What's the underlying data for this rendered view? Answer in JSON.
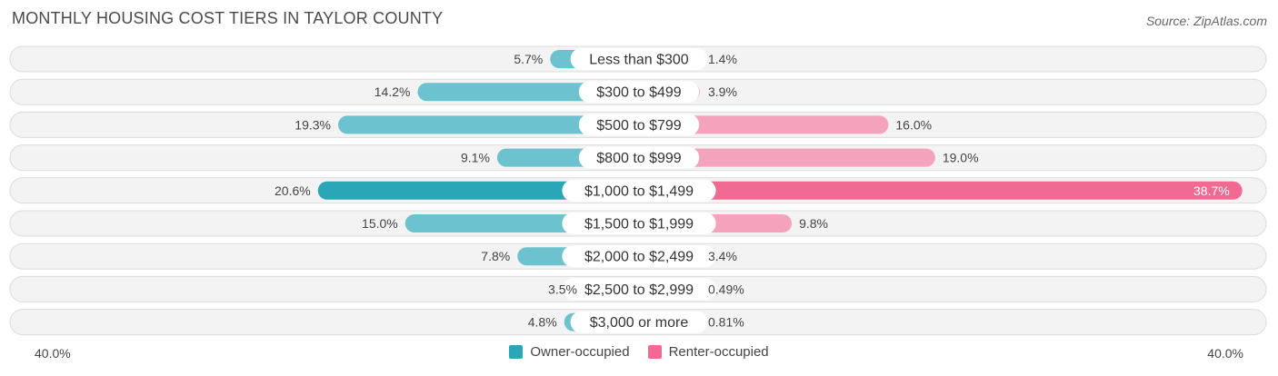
{
  "title": "MONTHLY HOUSING COST TIERS IN TAYLOR COUNTY",
  "source": "Source: ZipAtlas.com",
  "axis": {
    "left_label": "40.0%",
    "right_label": "40.0%"
  },
  "legend": {
    "owner_label": "Owner-occupied",
    "renter_label": "Renter-occupied"
  },
  "colors": {
    "owner": "#6cc2cf",
    "owner_strong": "#2aa6b6",
    "renter": "#f5a3bd",
    "renter_strong": "#f06a93",
    "track": "#efefef"
  },
  "chart_data": {
    "type": "bar",
    "orientation": "horizontal-diverging",
    "categories": [
      "Less than $300",
      "$300 to $499",
      "$500 to $799",
      "$800 to $999",
      "$1,000 to $1,499",
      "$1,500 to $1,999",
      "$2,000 to $2,499",
      "$2,500 to $2,999",
      "$3,000 or more"
    ],
    "series": [
      {
        "name": "Owner-occupied",
        "values": [
          5.7,
          14.2,
          19.3,
          9.1,
          20.6,
          15.0,
          7.8,
          3.5,
          4.8
        ],
        "labels": [
          "5.7%",
          "14.2%",
          "19.3%",
          "9.1%",
          "20.6%",
          "15.0%",
          "7.8%",
          "3.5%",
          "4.8%"
        ]
      },
      {
        "name": "Renter-occupied",
        "values": [
          1.4,
          3.9,
          16.0,
          19.0,
          38.7,
          9.8,
          3.4,
          0.49,
          0.81
        ],
        "labels": [
          "1.4%",
          "3.9%",
          "16.0%",
          "19.0%",
          "38.7%",
          "9.8%",
          "3.4%",
          "0.49%",
          "0.81%"
        ]
      }
    ],
    "xlim": [
      -40,
      40
    ],
    "legend_position": "bottom-center"
  }
}
